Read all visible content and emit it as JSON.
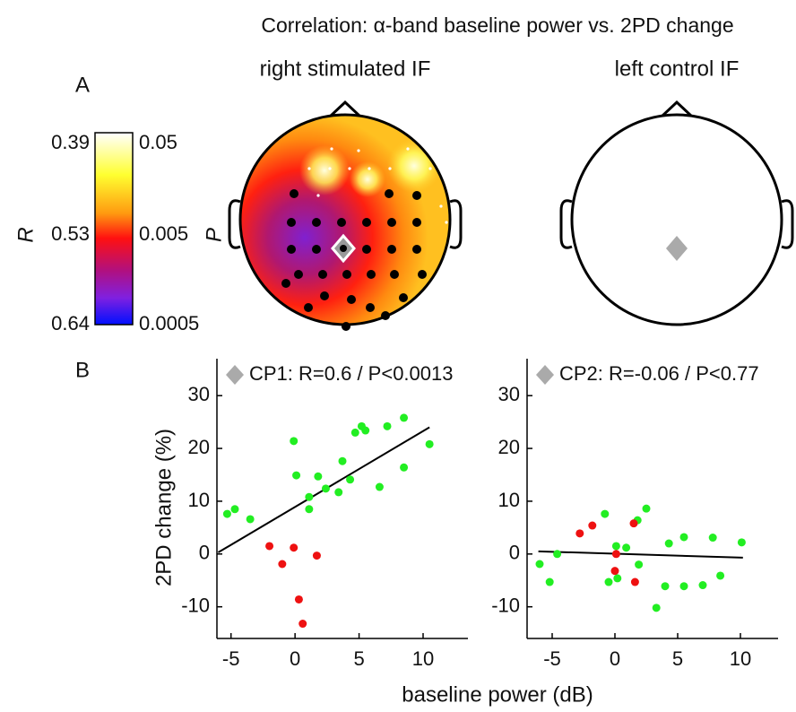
{
  "title": "Correlation: α-band baseline power vs. 2PD change",
  "panel_labels": [
    "A",
    "B"
  ],
  "topomap_titles": [
    "right stimulated IF",
    "left control IF"
  ],
  "colorbar": {
    "r_label": "R",
    "p_label": "P",
    "r_ticks": [
      "0.39",
      "0.53",
      "0.64"
    ],
    "p_ticks": [
      "0.05",
      "0.005",
      "0.0005"
    ]
  },
  "xlabel": "baseline power (dB)",
  "chart_data": [
    {
      "type": "scatter",
      "title": "CP1: R=0.6 / P<0.0013",
      "ylabel": "2PD change (%)",
      "xlim": [
        -6.1,
        13.5
      ],
      "ylim": [
        -16,
        37
      ],
      "xticks": [
        -5,
        0,
        5,
        10
      ],
      "yticks": [
        -10,
        0,
        10,
        20,
        30
      ],
      "series": [
        {
          "color": "#22ee22",
          "x": [
            -5.3,
            -4.7,
            -3.5,
            -0.1,
            0.1,
            1.1,
            1.1,
            1.8,
            2.4,
            3.4,
            3.7,
            4.3,
            4.7,
            5.2,
            5.5,
            7.2,
            6.6,
            8.5,
            8.5,
            10.5
          ],
          "values": [
            7.6,
            8.5,
            6.6,
            21.4,
            14.9,
            10.8,
            8.5,
            14.7,
            12.4,
            11.7,
            17.6,
            14.1,
            23,
            24.2,
            23.4,
            24.2,
            12.7,
            25.8,
            16.4,
            20.8
          ]
        },
        {
          "color": "#ee1111",
          "x": [
            -2,
            -1,
            -0.1,
            1.7,
            0.3,
            0.6
          ],
          "values": [
            1.5,
            -1.9,
            1.2,
            -0.3,
            -8.6,
            -13.2
          ]
        }
      ],
      "fit": {
        "x": [
          -6,
          10.5
        ],
        "y": [
          0.3,
          24
        ]
      }
    },
    {
      "type": "scatter",
      "title": "CP2: R=-0.06 / P<0.77",
      "xlim": [
        -7,
        13
      ],
      "ylim": [
        -16,
        37
      ],
      "xticks": [
        -5,
        0,
        5,
        10
      ],
      "yticks": [
        -10,
        0,
        10,
        20,
        30
      ],
      "series": [
        {
          "color": "#22ee22",
          "x": [
            -6,
            -5.2,
            -4.6,
            -0.8,
            -0.5,
            0.1,
            0.2,
            0.9,
            1.8,
            1.9,
            2.5,
            3.3,
            4,
            4.3,
            5.5,
            5.5,
            7,
            7.8,
            8.4,
            10.1
          ],
          "values": [
            -1.9,
            -5.3,
            0,
            7.6,
            -5.3,
            1.5,
            -4.6,
            1.2,
            6.4,
            -2,
            8.6,
            -10.2,
            -6.1,
            2,
            3.2,
            -6.1,
            -5.9,
            3.1,
            -4.1,
            2.2
          ]
        },
        {
          "color": "#ee1111",
          "x": [
            -2.8,
            -1.8,
            0,
            1.5,
            1.6,
            0.1
          ],
          "values": [
            3.9,
            5.4,
            -3.2,
            5.8,
            -5.3,
            0
          ]
        }
      ],
      "fit": {
        "x": [
          -6.1,
          10.2
        ],
        "y": [
          0.5,
          -0.7
        ]
      }
    }
  ]
}
